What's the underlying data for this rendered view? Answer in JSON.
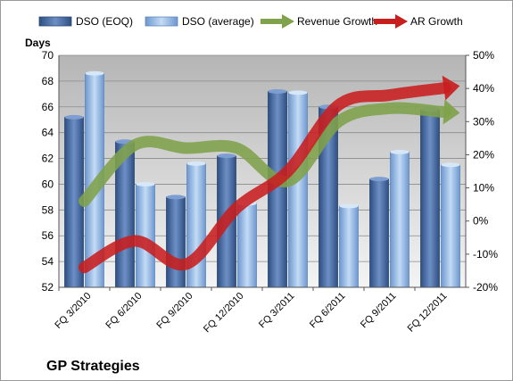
{
  "chart_data": {
    "type": "bar",
    "title": "GP Strategies",
    "ylabel": "Days",
    "ylim": [
      52,
      70
    ],
    "y_ticks": [
      52,
      54,
      56,
      58,
      60,
      62,
      64,
      66,
      68,
      70
    ],
    "y2lim": [
      -20,
      50
    ],
    "y2_ticks": [
      "-20%",
      "-10%",
      "0%",
      "10%",
      "20%",
      "30%",
      "40%",
      "50%"
    ],
    "grid": true,
    "legend_position": "top",
    "categories": [
      "FQ 3/2010",
      "FQ 6/2010",
      "FQ 9/2010",
      "FQ 12/2010",
      "FQ 3/2011",
      "FQ 6/2011",
      "FQ 9/2011",
      "FQ 12/2011"
    ],
    "series": [
      {
        "name": "DSO (EOQ)",
        "kind": "bar",
        "axis": "left",
        "color": "#4a6ea8",
        "values": [
          65.2,
          63.3,
          59.0,
          62.2,
          67.2,
          66.0,
          60.4,
          65.8
        ]
      },
      {
        "name": "DSO (average)",
        "kind": "bar",
        "axis": "left",
        "color": "#8fb4e3",
        "values": [
          68.6,
          60.0,
          61.6,
          58.5,
          67.1,
          58.3,
          62.5,
          61.5
        ]
      },
      {
        "name": "Revenue Growth",
        "kind": "arrow-line",
        "axis": "right",
        "color": "#7fa24a",
        "values": [
          6,
          23,
          22,
          22,
          12,
          30,
          34,
          33
        ]
      },
      {
        "name": "AR Growth",
        "kind": "arrow-line",
        "axis": "right",
        "color": "#c81e1e",
        "values": [
          -14,
          -6,
          -13,
          4,
          15,
          35,
          38,
          40
        ]
      }
    ]
  }
}
